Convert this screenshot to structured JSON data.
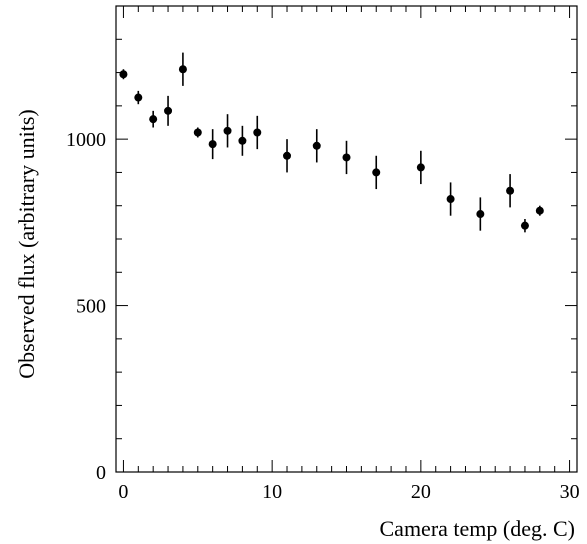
{
  "chart_data": {
    "type": "scatter",
    "title": "",
    "xlabel": "Camera temp (deg. C)",
    "ylabel": "Observed flux (arbitrary units)",
    "xlim": [
      -0.5,
      30.5
    ],
    "ylim": [
      0,
      1400
    ],
    "xticks": [
      0,
      10,
      20,
      30
    ],
    "yticks": [
      0,
      500,
      1000
    ],
    "grid": false,
    "error_bars": true,
    "marker_color": "#000000",
    "series": [
      {
        "points": [
          {
            "x": 0,
            "y": 1195,
            "err": 15
          },
          {
            "x": 1,
            "y": 1125,
            "err": 20
          },
          {
            "x": 2,
            "y": 1060,
            "err": 25
          },
          {
            "x": 3,
            "y": 1085,
            "err": 45
          },
          {
            "x": 4,
            "y": 1210,
            "err": 50
          },
          {
            "x": 5,
            "y": 1020,
            "err": 15
          },
          {
            "x": 6,
            "y": 985,
            "err": 45
          },
          {
            "x": 7,
            "y": 1025,
            "err": 50
          },
          {
            "x": 8,
            "y": 995,
            "err": 45
          },
          {
            "x": 9,
            "y": 1020,
            "err": 50
          },
          {
            "x": 11,
            "y": 950,
            "err": 50
          },
          {
            "x": 13,
            "y": 980,
            "err": 50
          },
          {
            "x": 15,
            "y": 945,
            "err": 50
          },
          {
            "x": 17,
            "y": 900,
            "err": 50
          },
          {
            "x": 20,
            "y": 915,
            "err": 50
          },
          {
            "x": 22,
            "y": 820,
            "err": 50
          },
          {
            "x": 24,
            "y": 775,
            "err": 50
          },
          {
            "x": 26,
            "y": 845,
            "err": 50
          },
          {
            "x": 27,
            "y": 740,
            "err": 20
          },
          {
            "x": 28,
            "y": 785,
            "err": 15
          }
        ]
      }
    ]
  }
}
